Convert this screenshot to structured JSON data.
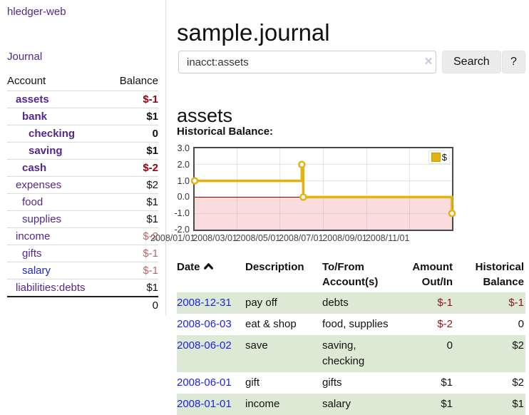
{
  "app": {
    "brand": "hledger-web",
    "nav_journal": "Journal"
  },
  "header": {
    "title": "sample.journal"
  },
  "search": {
    "value": "inacct:assets",
    "clear_icon": "×",
    "button_label": "Search",
    "help_label": "?"
  },
  "account_page": {
    "heading": "assets",
    "chart_label": "Historical Balance:"
  },
  "sidebar": {
    "col_account": "Account",
    "col_balance": "Balance",
    "accounts": [
      {
        "name": "assets",
        "level": 1,
        "bold": true,
        "balance": "$-1",
        "neg": "neg-strong"
      },
      {
        "name": "bank",
        "level": 2,
        "bold": true,
        "balance": "$1",
        "neg": ""
      },
      {
        "name": "checking",
        "level": 3,
        "bold": true,
        "balance": "0",
        "neg": ""
      },
      {
        "name": "saving",
        "level": 3,
        "bold": true,
        "balance": "$1",
        "neg": ""
      },
      {
        "name": "cash",
        "level": 2,
        "bold": true,
        "balance": "$-2",
        "neg": "neg-strong"
      },
      {
        "name": "expenses",
        "level": 1,
        "bold": false,
        "balance": "$2",
        "neg": ""
      },
      {
        "name": "food",
        "level": 2,
        "bold": false,
        "balance": "$1",
        "neg": ""
      },
      {
        "name": "supplies",
        "level": 2,
        "bold": false,
        "balance": "$1",
        "neg": ""
      },
      {
        "name": "income",
        "level": 1,
        "bold": false,
        "balance": "$-2",
        "neg": "neg-muted"
      },
      {
        "name": "gifts",
        "level": 2,
        "bold": false,
        "balance": "$-1",
        "neg": "neg-muted"
      },
      {
        "name": "salary",
        "level": 2,
        "bold": false,
        "balance": "$-1",
        "neg": "neg-muted",
        "link": "blue"
      },
      {
        "name": "liabilities:debts",
        "level": 1,
        "bold": false,
        "balance": "$1",
        "neg": ""
      }
    ],
    "total": "0"
  },
  "chart_data": {
    "type": "line",
    "title": "Historical Balance:",
    "legend_label": "$",
    "legend_position": "top-right",
    "grid": true,
    "step": true,
    "x_range": [
      "2008-01-01",
      "2008-12-31"
    ],
    "ylim": [
      -2,
      3
    ],
    "y_ticks": [
      "3.0",
      "2.0",
      "1.0",
      "0.0",
      "-1.0",
      "-2.0"
    ],
    "x_ticks": [
      "2008/01/01",
      "2008/03/01",
      "2008/05/01",
      "2008/07/01",
      "2008/09/01",
      "2008/11/01"
    ],
    "series": [
      {
        "name": "$",
        "color": "#e3b20f",
        "points": [
          [
            "2008-01-01",
            1
          ],
          [
            "2008-06-01",
            2
          ],
          [
            "2008-06-03",
            0
          ],
          [
            "2008-12-31",
            -1
          ]
        ]
      }
    ],
    "negative_region_color": "#fbdcdc",
    "zero_line_color": "#8b0000"
  },
  "register": {
    "columns": {
      "date": "Date",
      "description": "Description",
      "accounts": "To/From Account(s)",
      "amount": "Amount Out/In",
      "balance": "Historical Balance"
    },
    "rows": [
      {
        "date": "2008-12-31",
        "description": "pay off",
        "accounts": "debts",
        "amount": "$-1",
        "amount_neg": true,
        "balance": "$-1",
        "balance_neg": true
      },
      {
        "date": "2008-06-03",
        "description": "eat & shop",
        "accounts": "food, supplies",
        "amount": "$-2",
        "amount_neg": true,
        "balance": "0",
        "balance_neg": false
      },
      {
        "date": "2008-06-02",
        "description": "save",
        "accounts": "saving, checking",
        "amount": "0",
        "amount_neg": false,
        "balance": "$2",
        "balance_neg": false
      },
      {
        "date": "2008-06-01",
        "description": "gift",
        "accounts": "gifts",
        "amount": "$1",
        "amount_neg": false,
        "balance": "$2",
        "balance_neg": false
      },
      {
        "date": "2008-01-01",
        "description": "income",
        "accounts": "salary",
        "amount": "$1",
        "amount_neg": false,
        "balance": "$1",
        "balance_neg": false
      }
    ]
  },
  "colors": {
    "link_purple": "#54278f",
    "link_blue": "#2222e0",
    "negative_strong": "#940011",
    "negative_muted": "#b7636b",
    "row_stripe_green": "#dcead5",
    "chart_gold": "#e3b20f"
  }
}
